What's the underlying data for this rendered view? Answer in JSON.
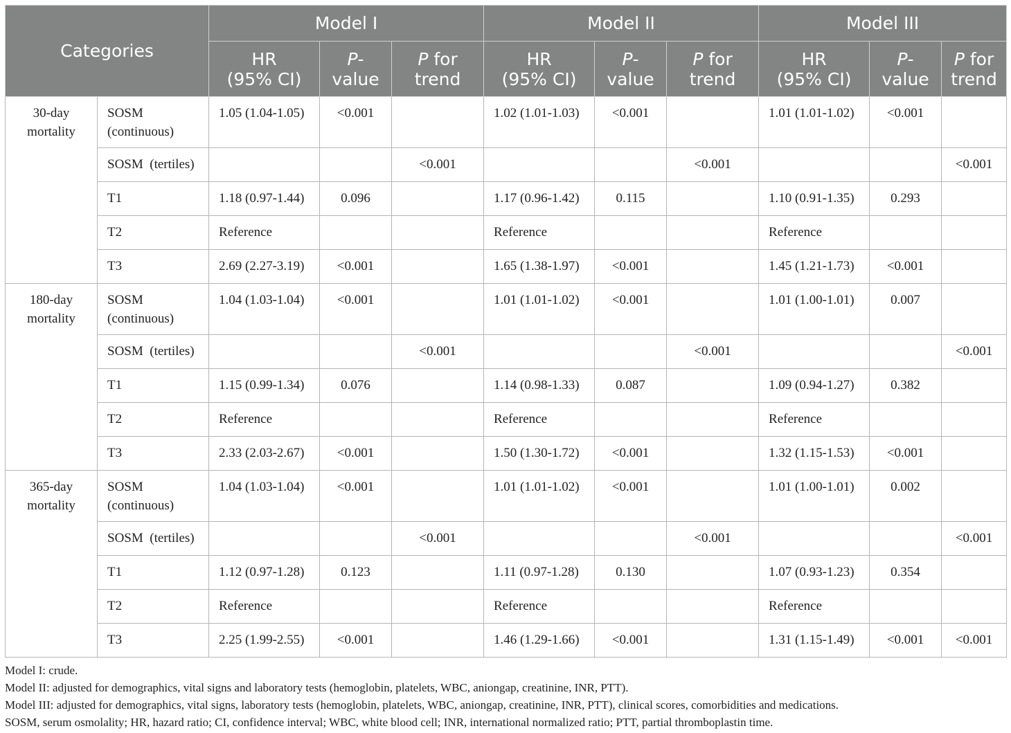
{
  "header": {
    "categories": "Categories",
    "models": [
      "Model I",
      "Model II",
      "Model III"
    ],
    "hr_line1": "HR",
    "hr_line2": "(95% CI)",
    "p_value_italic": "P",
    "p_value_rest_1": "-",
    "p_value_line2": "value",
    "p_trend_italic": "P",
    "p_trend_rest_1": " for",
    "p_trend_line2": "trend"
  },
  "groups": [
    {
      "label_line1": "30-day",
      "label_line2": "mortality",
      "rows": [
        {
          "label_line1": "SOSM",
          "label_line2": "(continuous)",
          "cells": [
            "1.05 (1.04-1.05)",
            "<0.001",
            "",
            "1.02 (1.01-1.03)",
            "<0.001",
            "",
            "1.01 (1.01-1.02)",
            "<0.001",
            ""
          ]
        },
        {
          "label_line1": "SOSM  (tertiles)",
          "label_line2": "",
          "cells": [
            "",
            "",
            "<0.001",
            "",
            "",
            "<0.001",
            "",
            "",
            "<0.001"
          ]
        },
        {
          "label_line1": "T1",
          "label_line2": "",
          "cells": [
            "1.18 (0.97-1.44)",
            "0.096",
            "",
            "1.17 (0.96-1.42)",
            "0.115",
            "",
            "1.10 (0.91-1.35)",
            "0.293",
            ""
          ]
        },
        {
          "label_line1": "T2",
          "label_line2": "",
          "cells": [
            "Reference",
            "",
            "",
            "Reference",
            "",
            "",
            "Reference",
            "",
            ""
          ]
        },
        {
          "label_line1": "T3",
          "label_line2": "",
          "cells": [
            "2.69 (2.27-3.19)",
            "<0.001",
            "",
            "1.65 (1.38-1.97)",
            "<0.001",
            "",
            "1.45 (1.21-1.73)",
            "<0.001",
            ""
          ]
        }
      ]
    },
    {
      "label_line1": "180-day",
      "label_line2": "mortality",
      "rows": [
        {
          "label_line1": "SOSM",
          "label_line2": "(continuous)",
          "cells": [
            "1.04 (1.03-1.04)",
            "<0.001",
            "",
            "1.01 (1.01-1.02)",
            "<0.001",
            "",
            "1.01 (1.00-1.01)",
            "0.007",
            ""
          ]
        },
        {
          "label_line1": "SOSM  (tertiles)",
          "label_line2": "",
          "cells": [
            "",
            "",
            "<0.001",
            "",
            "",
            "<0.001",
            "",
            "",
            "<0.001"
          ]
        },
        {
          "label_line1": "T1",
          "label_line2": "",
          "cells": [
            "1.15 (0.99-1.34)",
            "0.076",
            "",
            "1.14 (0.98-1.33)",
            "0.087",
            "",
            "1.09 (0.94-1.27)",
            "0.382",
            ""
          ]
        },
        {
          "label_line1": "T2",
          "label_line2": "",
          "cells": [
            "Reference",
            "",
            "",
            "Reference",
            "",
            "",
            "Reference",
            "",
            ""
          ]
        },
        {
          "label_line1": "T3",
          "label_line2": "",
          "cells": [
            "2.33 (2.03-2.67)",
            "<0.001",
            "",
            "1.50 (1.30-1.72)",
            "<0.001",
            "",
            "1.32 (1.15-1.53)",
            "<0.001",
            ""
          ]
        }
      ]
    },
    {
      "label_line1": "365-day",
      "label_line2": "mortality",
      "rows": [
        {
          "label_line1": "SOSM",
          "label_line2": "(continuous)",
          "cells": [
            "1.04 (1.03-1.04)",
            "<0.001",
            "",
            "1.01 (1.01-1.02)",
            "<0.001",
            "",
            "1.01 (1.00-1.01)",
            "0.002",
            ""
          ]
        },
        {
          "label_line1": "SOSM  (tertiles)",
          "label_line2": "",
          "cells": [
            "",
            "",
            "<0.001",
            "",
            "",
            "<0.001",
            "",
            "",
            "<0.001"
          ]
        },
        {
          "label_line1": "T1",
          "label_line2": "",
          "cells": [
            "1.12 (0.97-1.28)",
            "0.123",
            "",
            "1.11 (0.97-1.28)",
            "0.130",
            "",
            "1.07 (0.93-1.23)",
            "0.354",
            ""
          ]
        },
        {
          "label_line1": "T2",
          "label_line2": "",
          "cells": [
            "Reference",
            "",
            "",
            "Reference",
            "",
            "",
            "Reference",
            "",
            ""
          ]
        },
        {
          "label_line1": "T3",
          "label_line2": "",
          "cells": [
            "2.25 (1.99-2.55)",
            "<0.001",
            "",
            "1.46 (1.29-1.66)",
            "<0.001",
            "",
            "1.31 (1.15-1.49)",
            "<0.001",
            "<0.001"
          ]
        }
      ]
    }
  ],
  "notes": [
    "Model I: crude.",
    "Model II: adjusted for demographics, vital signs and laboratory tests (hemoglobin, platelets, WBC, aniongap, creatinine, INR, PTT).",
    "Model III: adjusted for demographics, vital signs, laboratory tests (hemoglobin, platelets, WBC, aniongap, creatinine, INR, PTT), clinical scores, comorbidities and medications.",
    "SOSM, serum osmolality; HR, hazard ratio; CI, confidence interval; WBC, white blood cell; INR, international normalized ratio; PTT, partial thromboplastin time."
  ],
  "colors": {
    "header_bg": "#828584",
    "header_text": "#ffffff",
    "border": "#b5b5b5"
  }
}
